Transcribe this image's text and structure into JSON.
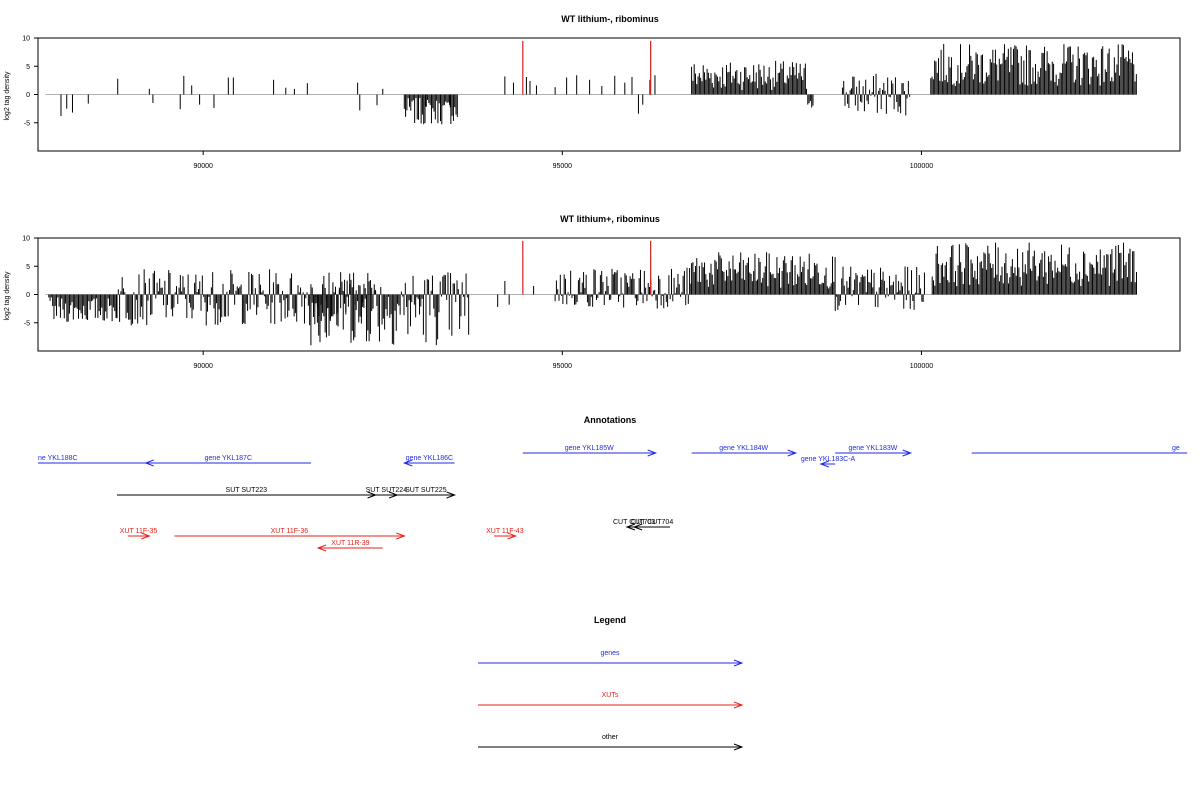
{
  "chart_data": [
    {
      "type": "bar",
      "title": "WT lithium-, ribominus",
      "xlabel": "",
      "ylabel": "log2 tag density",
      "xlim": [
        87700,
        103600
      ],
      "ylim": [
        -10,
        10
      ],
      "xticks": [
        "90000",
        "95000",
        "100000"
      ],
      "yticks": [
        "-5",
        "0",
        "5",
        "10"
      ],
      "baseline": {
        "from": 87800,
        "to": 103000
      },
      "markers": [
        94450,
        96230
      ],
      "marker_height": 9.5,
      "sparse_bars": [
        {
          "x": 88020,
          "y": -3.8
        },
        {
          "x": 88100,
          "y": -2.5
        },
        {
          "x": 88180,
          "y": -3.2
        },
        {
          "x": 88400,
          "y": -1.6
        },
        {
          "x": 88810,
          "y": 2.8
        },
        {
          "x": 89250,
          "y": 1.0
        },
        {
          "x": 89300,
          "y": -1.5
        },
        {
          "x": 89680,
          "y": -2.6
        },
        {
          "x": 89730,
          "y": 3.3
        },
        {
          "x": 89840,
          "y": 1.6
        },
        {
          "x": 89950,
          "y": -1.8
        },
        {
          "x": 90150,
          "y": -2.4
        },
        {
          "x": 90350,
          "y": 3.0
        },
        {
          "x": 90420,
          "y": 3.0
        },
        {
          "x": 90980,
          "y": 2.6
        },
        {
          "x": 91150,
          "y": 1.2
        },
        {
          "x": 91270,
          "y": 1.0
        },
        {
          "x": 91450,
          "y": 2.0
        },
        {
          "x": 92150,
          "y": 2.1
        },
        {
          "x": 92180,
          "y": -2.8
        },
        {
          "x": 92420,
          "y": -1.9
        },
        {
          "x": 92500,
          "y": 1.0
        },
        {
          "x": 93100,
          "y": -2.1
        },
        {
          "x": 93440,
          "y": -2.3
        },
        {
          "x": 94200,
          "y": 3.2
        },
        {
          "x": 94320,
          "y": 2.1
        },
        {
          "x": 94500,
          "y": 3.1
        },
        {
          "x": 94550,
          "y": 2.4
        },
        {
          "x": 94640,
          "y": 1.6
        },
        {
          "x": 94900,
          "y": 1.3
        },
        {
          "x": 95060,
          "y": 3.0
        },
        {
          "x": 95200,
          "y": 3.4
        },
        {
          "x": 95380,
          "y": 2.6
        },
        {
          "x": 95550,
          "y": 1.5
        },
        {
          "x": 95730,
          "y": 3.3
        },
        {
          "x": 95870,
          "y": 2.1
        },
        {
          "x": 95970,
          "y": 3.1
        },
        {
          "x": 96060,
          "y": -3.4
        },
        {
          "x": 96120,
          "y": -1.8
        },
        {
          "x": 96220,
          "y": 2.6
        },
        {
          "x": 96290,
          "y": 3.4
        }
      ],
      "dense_regions": [
        {
          "from": 92800,
          "to": 93550,
          "min": -5.4,
          "max": -0.6
        },
        {
          "from": 96800,
          "to": 98400,
          "min": 0.8,
          "max": 6.0
        },
        {
          "from": 98400,
          "to": 98500,
          "min": -2.5,
          "max": 1.5
        },
        {
          "from": 98900,
          "to": 99850,
          "min": -3.8,
          "max": 3.8
        },
        {
          "from": 100130,
          "to": 103000,
          "min": 1.5,
          "max": 9.0
        }
      ]
    },
    {
      "type": "bar",
      "title": "WT lithium+, ribominus",
      "xlabel": "",
      "ylabel": "log2 tag density",
      "xlim": [
        87700,
        103600
      ],
      "ylim": [
        -10,
        10
      ],
      "xticks": [
        "90000",
        "95000",
        "100000"
      ],
      "yticks": [
        "-5",
        "0",
        "5",
        "10"
      ],
      "baseline": {
        "from": 87800,
        "to": 103000
      },
      "markers": [
        94450,
        96230
      ],
      "marker_height": 9.5,
      "sparse_bars": [
        {
          "x": 94100,
          "y": -2.2
        },
        {
          "x": 94200,
          "y": 2.4
        },
        {
          "x": 94260,
          "y": -1.8
        },
        {
          "x": 94600,
          "y": 1.5
        }
      ],
      "dense_regions": [
        {
          "from": 87850,
          "to": 88800,
          "min": -5.0,
          "max": -0.5
        },
        {
          "from": 88800,
          "to": 92400,
          "min": -5.5,
          "max": 4.5
        },
        {
          "from": 91500,
          "to": 93700,
          "min": -9.0,
          "max": 4.5
        },
        {
          "from": 94900,
          "to": 96800,
          "min": -2.5,
          "max": 5.0
        },
        {
          "from": 96800,
          "to": 98800,
          "min": 1.0,
          "max": 7.5
        },
        {
          "from": 98800,
          "to": 100050,
          "min": -3.0,
          "max": 5.0
        },
        {
          "from": 100150,
          "to": 103000,
          "min": 1.5,
          "max": 9.2
        }
      ]
    }
  ],
  "annotations": {
    "title": "Annotations",
    "features": [
      {
        "label": "ne YKL188C",
        "kind": "gene",
        "from": 87700,
        "to": 89250,
        "dir": "none",
        "row": 1
      },
      {
        "label": "gene YKL187C",
        "kind": "gene",
        "from": 89200,
        "to": 91500,
        "dir": "left",
        "row": 1
      },
      {
        "label": "gene YKL186C",
        "kind": "gene",
        "from": 92800,
        "to": 93500,
        "dir": "left",
        "row": 1
      },
      {
        "label": "gene YKL185W",
        "kind": "gene",
        "from": 94450,
        "to": 96300,
        "dir": "right",
        "row": 0
      },
      {
        "label": "gene YKL184W",
        "kind": "gene",
        "from": 96800,
        "to": 98250,
        "dir": "right",
        "row": 0
      },
      {
        "label": "gene YKL183C-A",
        "kind": "gene",
        "from": 98600,
        "to": 98800,
        "dir": "left",
        "row": 2
      },
      {
        "label": "gene YKL183W",
        "kind": "gene",
        "from": 98800,
        "to": 99850,
        "dir": "right",
        "row": 0
      },
      {
        "label": "ge",
        "kind": "gene",
        "from": 100700,
        "to": 103700,
        "dir": "none",
        "row": 0
      },
      {
        "label": "SUT SUT223",
        "kind": "other",
        "from": 88800,
        "to": 92400,
        "dir": "right",
        "row": 3
      },
      {
        "label": "SUT SUT224",
        "kind": "other",
        "from": 92400,
        "to": 92700,
        "dir": "right",
        "row": 3
      },
      {
        "label": "SUT SUT225",
        "kind": "other",
        "from": 92700,
        "to": 93500,
        "dir": "right",
        "row": 3
      },
      {
        "label": "CUT CUT703",
        "kind": "other",
        "from": 95900,
        "to": 96100,
        "dir": "left",
        "row": 4
      },
      {
        "label": "CUT CUT704",
        "kind": "other",
        "from": 96000,
        "to": 96500,
        "dir": "left",
        "row": 4
      },
      {
        "label": "XUT 11F-35",
        "kind": "xut",
        "from": 88950,
        "to": 89250,
        "dir": "right",
        "row": 5
      },
      {
        "label": "XUT 11F-36",
        "kind": "xut",
        "from": 89600,
        "to": 92800,
        "dir": "right",
        "row": 5
      },
      {
        "label": "XUT 11R-39",
        "kind": "xut",
        "from": 91600,
        "to": 92500,
        "dir": "left",
        "row": 6
      },
      {
        "label": "XUT 11F-43",
        "kind": "xut",
        "from": 94050,
        "to": 94350,
        "dir": "right",
        "row": 5
      }
    ]
  },
  "legend": {
    "title": "Legend",
    "entries": [
      {
        "label": "genes",
        "kind": "gene"
      },
      {
        "label": "XUTs",
        "kind": "xut"
      },
      {
        "label": "other",
        "kind": "other"
      }
    ]
  },
  "colors": {
    "gene": "#1f2be0",
    "xut": "#e8201a",
    "other": "#000000",
    "marker": "#d62020",
    "baseline": "#b0b0b0"
  }
}
